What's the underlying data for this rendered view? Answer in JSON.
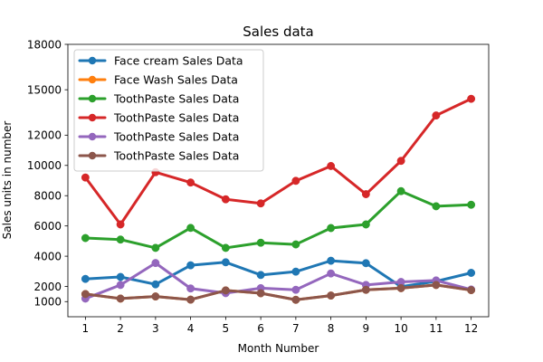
{
  "chart_data": {
    "type": "line",
    "title": "Sales data",
    "xlabel": "Month Number",
    "ylabel": "Sales units in number",
    "x": [
      1,
      2,
      3,
      4,
      5,
      6,
      7,
      8,
      9,
      10,
      11,
      12
    ],
    "x_tick_labels": [
      "1",
      "2",
      "3",
      "4",
      "5",
      "6",
      "7",
      "8",
      "9",
      "10",
      "11",
      "12"
    ],
    "xlim": [
      0.5,
      12.5
    ],
    "ylim": [
      0,
      18000
    ],
    "y_ticks": [
      1000,
      2000,
      4000,
      6000,
      8000,
      10000,
      12000,
      15000,
      18000
    ],
    "y_tick_labels": [
      "1000",
      "2000",
      "4000",
      "6000",
      "8000",
      "10000",
      "12000",
      "15000",
      "18000"
    ],
    "grid": false,
    "legend_position": "top-left",
    "series": [
      {
        "name": "Face cream Sales Data",
        "color": "#1f77b4",
        "values": [
          2500,
          2630,
          2140,
          3400,
          3600,
          2760,
          2980,
          3700,
          3540,
          1990,
          2340,
          2900
        ]
      },
      {
        "name": "Face Wash Sales Data",
        "color": "#ff7f0e",
        "values": [
          1500,
          1200,
          1340,
          1130,
          1740,
          1555,
          1120,
          1400,
          1780,
          1890,
          2100,
          1760
        ]
      },
      {
        "name": "ToothPaste Sales Data",
        "color": "#2ca02c",
        "values": [
          5200,
          5100,
          4550,
          5870,
          4550,
          4890,
          4780,
          5860,
          6100,
          8300,
          7300,
          7400
        ]
      },
      {
        "name": "ToothPaste Sales Data",
        "color": "#d62728",
        "values": [
          9200,
          6100,
          9550,
          8870,
          7760,
          7490,
          8980,
          9960,
          8100,
          10300,
          13300,
          14400
        ]
      },
      {
        "name": "ToothPaste Sales Data",
        "color": "#9467bd",
        "values": [
          1200,
          2100,
          3550,
          1870,
          1560,
          1890,
          1780,
          2860,
          2100,
          2300,
          2400,
          1800
        ]
      },
      {
        "name": "ToothPaste Sales Data",
        "color": "#8c564b",
        "values": [
          1500,
          1200,
          1340,
          1130,
          1740,
          1555,
          1120,
          1400,
          1780,
          1890,
          2100,
          1760
        ]
      }
    ]
  }
}
